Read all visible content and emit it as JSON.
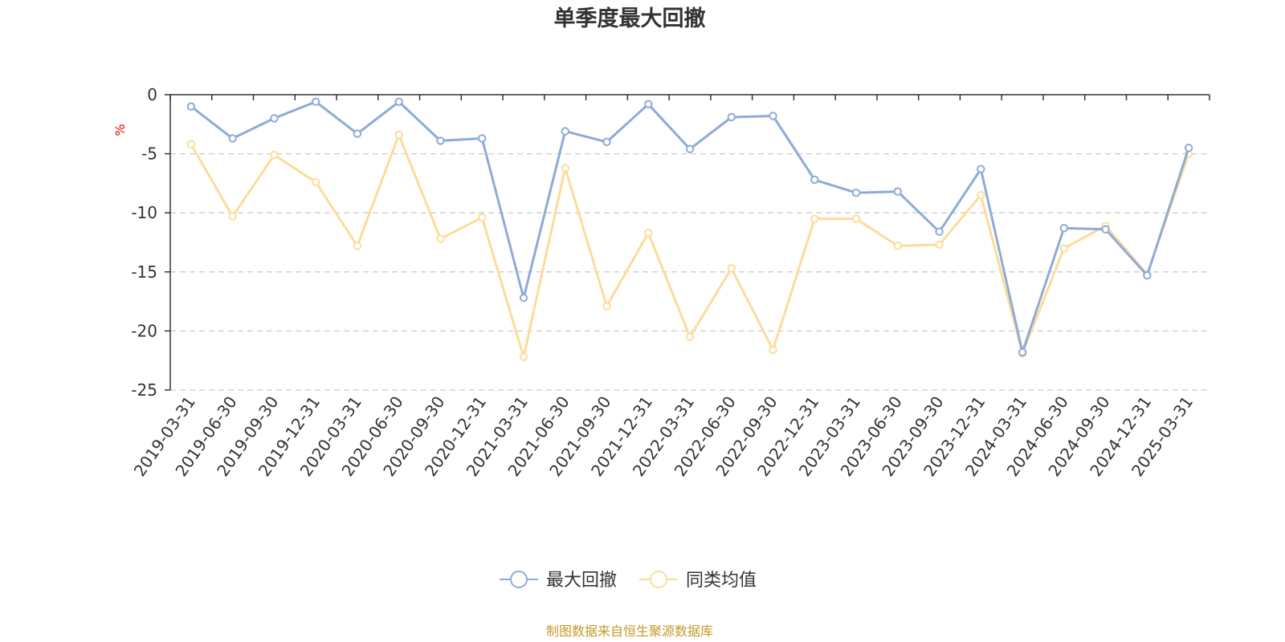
{
  "chart_data": {
    "type": "line",
    "title": "单季度最大回撤",
    "ylabel": "%",
    "ylim": [
      -25,
      0
    ],
    "yticks": [
      0,
      -5,
      -10,
      -15,
      -20,
      -25
    ],
    "grid": true,
    "legend_position": "bottom-center",
    "categories": [
      "2019-03-31",
      "2019-06-30",
      "2019-09-30",
      "2019-12-31",
      "2020-03-31",
      "2020-06-30",
      "2020-09-30",
      "2020-12-31",
      "2021-03-31",
      "2021-06-30",
      "2021-09-30",
      "2021-12-31",
      "2022-03-31",
      "2022-06-30",
      "2022-09-30",
      "2022-12-31",
      "2023-03-31",
      "2023-06-30",
      "2023-09-30",
      "2023-12-31",
      "2024-03-31",
      "2024-06-30",
      "2024-09-30",
      "2024-12-31",
      "2025-03-31"
    ],
    "series": [
      {
        "name": "最大回撤",
        "color": "#8eabd8",
        "values": [
          -1.0,
          -3.7,
          -2.0,
          -0.6,
          -3.3,
          -0.6,
          -3.9,
          -3.7,
          -17.2,
          -3.1,
          -4.0,
          -0.8,
          -4.6,
          -1.9,
          -1.8,
          -7.2,
          -8.3,
          -8.2,
          -11.6,
          -6.3,
          -21.8,
          -11.3,
          -11.4,
          -15.3,
          -4.5
        ]
      },
      {
        "name": "同类均值",
        "color": "#fddc9a",
        "values": [
          -4.2,
          -10.3,
          -5.1,
          -7.4,
          -12.8,
          -3.4,
          -12.2,
          -10.4,
          -22.2,
          -6.2,
          -17.9,
          -11.7,
          -20.5,
          -14.7,
          -21.6,
          -10.5,
          -10.5,
          -12.8,
          -12.7,
          -8.5,
          -21.9,
          -13.0,
          -11.1,
          -15.2,
          -5.0
        ]
      }
    ]
  },
  "footer": {
    "source_text": "制图数据来自恒生聚源数据库"
  }
}
